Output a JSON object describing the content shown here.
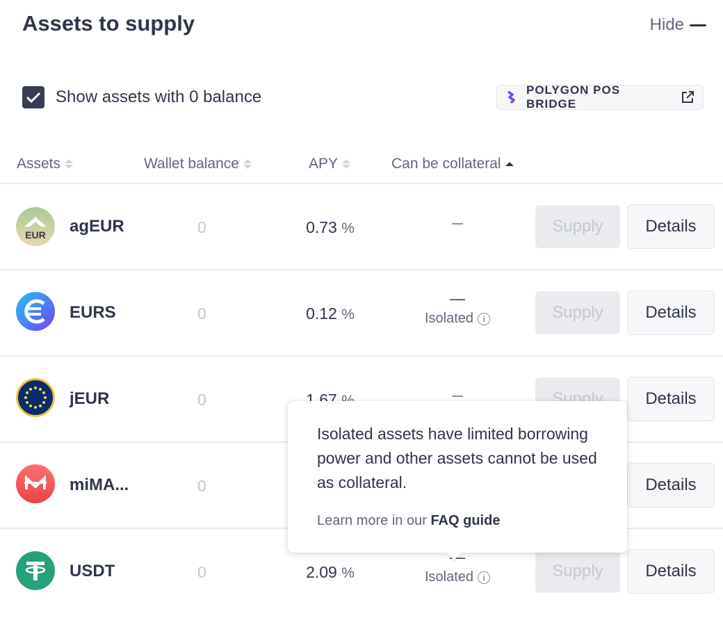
{
  "header": {
    "title": "Assets to supply",
    "hide_label": "Hide"
  },
  "controls": {
    "show_zero_label": "Show assets with 0 balance",
    "show_zero_checked": true,
    "bridge_label": "POLYGON POS BRIDGE"
  },
  "columns": {
    "assets": "Assets",
    "wallet_balance": "Wallet balance",
    "apy": "APY",
    "collateral": "Can be collateral"
  },
  "rows": [
    {
      "name": "agEUR",
      "icon": "ageur-icon",
      "icon_text": "EUR",
      "balance": "0",
      "apy": "0.73",
      "collateral": "—",
      "isolated": "",
      "supply": "Supply",
      "details": "Details"
    },
    {
      "name": "EURS",
      "icon": "eurs-icon",
      "balance": "0",
      "apy": "0.12",
      "collateral": "—",
      "isolated": "Isolated",
      "supply": "Supply",
      "details": "Details"
    },
    {
      "name": "jEUR",
      "icon": "jeur-icon",
      "balance": "0",
      "apy": "1.67",
      "collateral": "—",
      "isolated": "",
      "supply": "Supply",
      "details": "Details"
    },
    {
      "name": "miMA...",
      "icon": "mimatic-icon",
      "balance": "0",
      "apy": "",
      "collateral": "",
      "isolated": "",
      "supply": "",
      "details": "Details"
    },
    {
      "name": "USDT",
      "icon": "usdt-icon",
      "balance": "0",
      "apy": "2.09",
      "collateral": "—",
      "isolated": "Isolated",
      "supply": "Supply",
      "details": "Details"
    }
  ],
  "percent_sign": "%",
  "tooltip": {
    "text": "Isolated assets have limited borrowing power and other assets cannot be used as collateral.",
    "link_prefix": "Learn more in our",
    "link_label": "FAQ guide"
  },
  "colors": {
    "text_main": "#303549",
    "text_muted": "#62677b",
    "eurs": "#4b6cf2",
    "jeur": "#0d2a6e",
    "mimatic": "#f25d5d",
    "usdt": "#26a17b"
  }
}
